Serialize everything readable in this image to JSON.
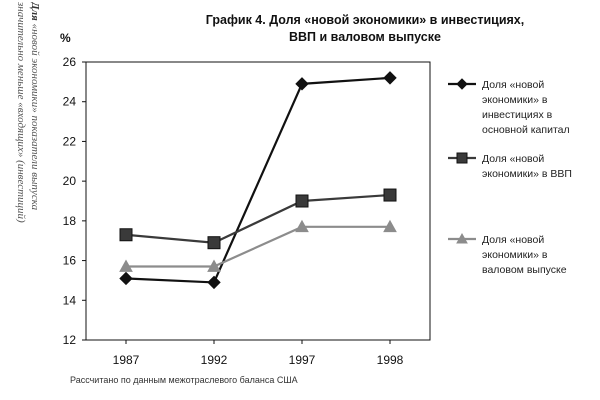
{
  "side_text": {
    "label_strong": "Для",
    "lines": [
      "«новой экономики» показатели выпуска",
      "значительно меньше «входящих» (инвестиций)"
    ]
  },
  "chart_data": {
    "type": "line",
    "title": "График 4. Доля «новой экономики» в инвестициях,",
    "title_line2": "ВВП и валовом выпуске",
    "ylabel": "%",
    "xlabel": "",
    "categories": [
      "1987",
      "1992",
      "1997",
      "1998"
    ],
    "ylim": [
      12,
      26
    ],
    "yticks": [
      12,
      14,
      16,
      18,
      20,
      22,
      24,
      26
    ],
    "grid": false,
    "legend_position": "right",
    "series": [
      {
        "name": "Доля «новой экономики» в инвестициях в основной капитал",
        "legend_lines": [
          "Доля «новой",
          "экономики» в",
          "инвестициях в",
          "основной капитал"
        ],
        "values": [
          15.1,
          14.9,
          24.9,
          25.2
        ],
        "marker": "diamond",
        "color": "#111111"
      },
      {
        "name": "Доля «новой экономики» в ВВП",
        "legend_lines": [
          "Доля «новой",
          "экономики» в ВВП"
        ],
        "values": [
          17.3,
          16.9,
          19.0,
          19.3
        ],
        "marker": "square",
        "color": "#3a3a3a"
      },
      {
        "name": "Доля «новой экономики» в валовом выпуске",
        "legend_lines": [
          "Доля «новой",
          "экономики» в",
          "валовом выпуске"
        ],
        "values": [
          15.7,
          15.7,
          17.7,
          17.7
        ],
        "marker": "triangle",
        "color": "#8c8c8c"
      }
    ]
  },
  "footnote": "Рассчитано по данным межотраслевого баланса США"
}
